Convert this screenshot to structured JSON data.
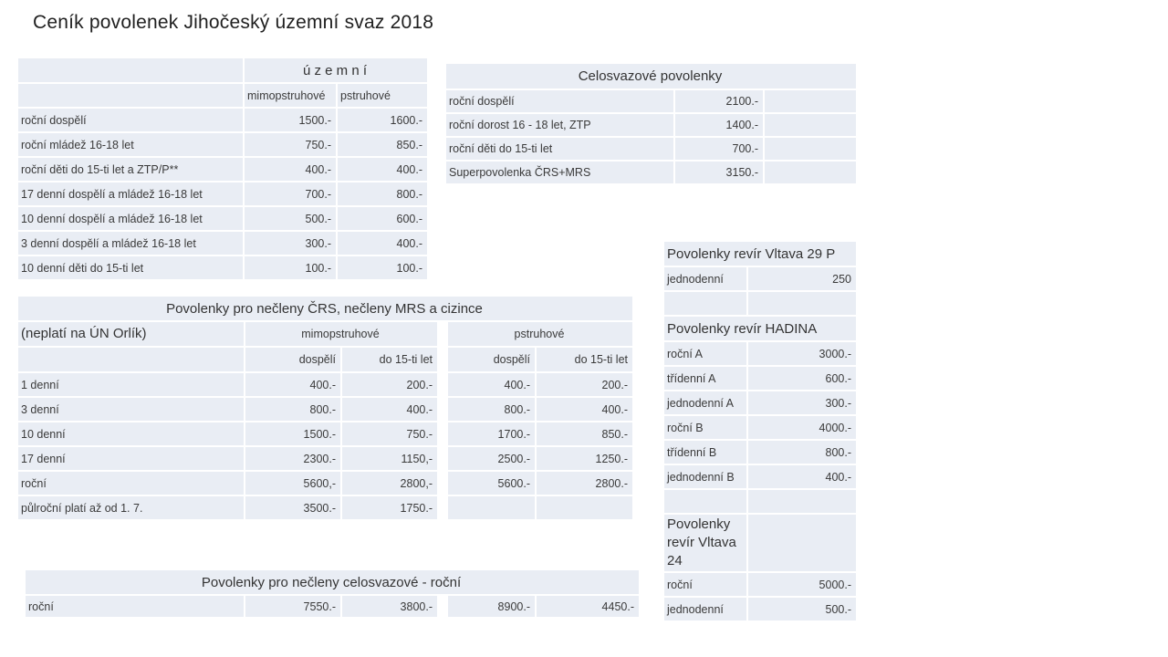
{
  "page_title": "Ceník povolenek Jihočeský územní svaz 2018",
  "colors": {
    "cell_fill": "#e9edf4",
    "grid_line": "#ffffff",
    "text": "#3a3a3a"
  },
  "tables": [
    {
      "id": "uzemni",
      "name": "územní",
      "rows": [
        [
          {
            "t": ""
          },
          {
            "t": "ú z e m n í",
            "s": 2,
            "k": "tc"
          }
        ],
        [
          {
            "t": ""
          },
          {
            "t": "mimopstruhové",
            "k": "hl"
          },
          {
            "t": "pstruhové",
            "k": "hl"
          }
        ],
        [
          {
            "t": "roční dospělí"
          },
          {
            "t": "1500.-",
            "k": "n"
          },
          {
            "t": "1600.-",
            "k": "n"
          }
        ],
        [
          {
            "t": "roční mládež 16-18 let"
          },
          {
            "t": "750.-",
            "k": "n"
          },
          {
            "t": "850.-",
            "k": "n"
          }
        ],
        [
          {
            "t": "roční děti do 15-ti let a ZTP/P**"
          },
          {
            "t": "400.-",
            "k": "n"
          },
          {
            "t": "400.-",
            "k": "n"
          }
        ],
        [
          {
            "t": "17 denní dospělí a mládež 16-18 let"
          },
          {
            "t": "700.-",
            "k": "n"
          },
          {
            "t": "800.-",
            "k": "n"
          }
        ],
        [
          {
            "t": "10 denní dospělí a mládež 16-18 let"
          },
          {
            "t": "500.-",
            "k": "n"
          },
          {
            "t": "600.-",
            "k": "n"
          }
        ],
        [
          {
            "t": "3 denní dospělí a mládež 16-18 let"
          },
          {
            "t": "300.-",
            "k": "n"
          },
          {
            "t": "400.-",
            "k": "n"
          }
        ],
        [
          {
            "t": "10 denní děti do 15-ti let"
          },
          {
            "t": "100.-",
            "k": "n"
          },
          {
            "t": "100.-",
            "k": "n"
          }
        ]
      ]
    },
    {
      "id": "celosvazove",
      "name": "Celosvazové povolenky",
      "rows": [
        [
          {
            "t": "Celosvazové povolenky",
            "s": 3,
            "k": "tc"
          }
        ],
        [
          {
            "t": "roční dospělí"
          },
          {
            "t": "2100.-",
            "k": "n"
          },
          {
            "t": ""
          }
        ],
        [
          {
            "t": "roční dorost 16  - 18  let, ZTP"
          },
          {
            "t": "1400.-",
            "k": "n"
          },
          {
            "t": ""
          }
        ],
        [
          {
            "t": "roční děti do 15-ti let"
          },
          {
            "t": "700.-",
            "k": "n"
          },
          {
            "t": ""
          }
        ],
        [
          {
            "t": "Superpovolenka ČRS+MRS"
          },
          {
            "t": "3150.-",
            "k": "n"
          },
          {
            "t": ""
          }
        ]
      ]
    },
    {
      "id": "necleny",
      "name": "Povolenky pro nečleny ČRS, nečleny MRS a cizince",
      "rows": [
        [
          {
            "t": "Povolenky pro nečleny ČRS, nečleny MRS a cizince",
            "s": 6,
            "k": "tc"
          }
        ],
        [
          {
            "t": "(neplatí na ÚN Orlík)",
            "k": "bl"
          },
          {
            "t": "mimopstruhové",
            "s": 2,
            "k": "hc"
          },
          {
            "t": "",
            "k": "sp"
          },
          {
            "t": "pstruhové",
            "s": 2,
            "k": "hc"
          }
        ],
        [
          {
            "t": ""
          },
          {
            "t": "dospělí",
            "k": "n"
          },
          {
            "t": "do 15-ti let",
            "k": "n"
          },
          {
            "t": "",
            "k": "sp"
          },
          {
            "t": "dospělí",
            "k": "n"
          },
          {
            "t": "do 15-ti let",
            "k": "n"
          }
        ],
        [
          {
            "t": "1 denní"
          },
          {
            "t": "400.-",
            "k": "n"
          },
          {
            "t": "200.-",
            "k": "n"
          },
          {
            "t": "",
            "k": "sp"
          },
          {
            "t": "400.-",
            "k": "n"
          },
          {
            "t": "200.-",
            "k": "n"
          }
        ],
        [
          {
            "t": "3 denní"
          },
          {
            "t": "800.-",
            "k": "n"
          },
          {
            "t": "400.-",
            "k": "n"
          },
          {
            "t": "",
            "k": "sp"
          },
          {
            "t": "800.-",
            "k": "n"
          },
          {
            "t": "400.-",
            "k": "n"
          }
        ],
        [
          {
            "t": "10 denní"
          },
          {
            "t": "1500.-",
            "k": "n"
          },
          {
            "t": "750.-",
            "k": "n"
          },
          {
            "t": "",
            "k": "sp"
          },
          {
            "t": "1700.-",
            "k": "n"
          },
          {
            "t": "850.-",
            "k": "n"
          }
        ],
        [
          {
            "t": "17 denní"
          },
          {
            "t": "2300.-",
            "k": "n"
          },
          {
            "t": "1150,-",
            "k": "n"
          },
          {
            "t": "",
            "k": "sp"
          },
          {
            "t": "2500.-",
            "k": "n"
          },
          {
            "t": "1250.-",
            "k": "n"
          }
        ],
        [
          {
            "t": "roční"
          },
          {
            "t": "5600,-",
            "k": "n"
          },
          {
            "t": "2800,-",
            "k": "n"
          },
          {
            "t": "",
            "k": "sp"
          },
          {
            "t": "5600.-",
            "k": "n"
          },
          {
            "t": "2800.-",
            "k": "n"
          }
        ],
        [
          {
            "t": "půlroční platí až od 1. 7."
          },
          {
            "t": "3500.-",
            "k": "n"
          },
          {
            "t": "1750.-",
            "k": "n"
          },
          {
            "t": "",
            "k": "sp"
          },
          {
            "t": ""
          },
          {
            "t": ""
          }
        ]
      ]
    },
    {
      "id": "necleny-rocni",
      "name": "Povolenky pro nečleny celosvazové - roční",
      "rows": [
        [
          {
            "t": "Povolenky pro nečleny celosvazové  - roční",
            "s": 6,
            "k": "tc"
          }
        ],
        [
          {
            "t": "roční"
          },
          {
            "t": "7550.-",
            "k": "n"
          },
          {
            "t": "3800.-",
            "k": "n"
          },
          {
            "t": "",
            "k": "sp"
          },
          {
            "t": "8900.-",
            "k": "n"
          },
          {
            "t": "4450.-",
            "k": "n"
          }
        ]
      ]
    },
    {
      "id": "reviry",
      "name": "Povolenky revíry",
      "rows": [
        [
          {
            "t": "Povolenky revír Vltava 29 P",
            "s": 2,
            "k": "tl"
          }
        ],
        [
          {
            "t": "jednodenní"
          },
          {
            "t": "250",
            "k": "n"
          }
        ],
        [
          {
            "t": ""
          },
          {
            "t": ""
          }
        ],
        [
          {
            "t": "Povolenky revír HADINA",
            "s": 2,
            "k": "tl"
          }
        ],
        [
          {
            "t": "roční A"
          },
          {
            "t": "3000.-",
            "k": "n"
          }
        ],
        [
          {
            "t": "třídenní A"
          },
          {
            "t": "600.-",
            "k": "n"
          }
        ],
        [
          {
            "t": "jednodenní A"
          },
          {
            "t": "300.-",
            "k": "n"
          }
        ],
        [
          {
            "t": "roční B"
          },
          {
            "t": "4000.-",
            "k": "n"
          }
        ],
        [
          {
            "t": "třídenní B"
          },
          {
            "t": "800.-",
            "k": "n"
          }
        ],
        [
          {
            "t": "jednodenní B"
          },
          {
            "t": "400.-",
            "k": "n"
          }
        ],
        [
          {
            "t": ""
          },
          {
            "t": ""
          }
        ],
        [
          {
            "t": "Povolenky revír Vltava 24",
            "k": "bl"
          },
          {
            "t": ""
          }
        ],
        [
          {
            "t": "roční"
          },
          {
            "t": "5000.-",
            "k": "n"
          }
        ],
        [
          {
            "t": "jednodenní"
          },
          {
            "t": "500.-",
            "k": "n"
          }
        ]
      ]
    }
  ]
}
